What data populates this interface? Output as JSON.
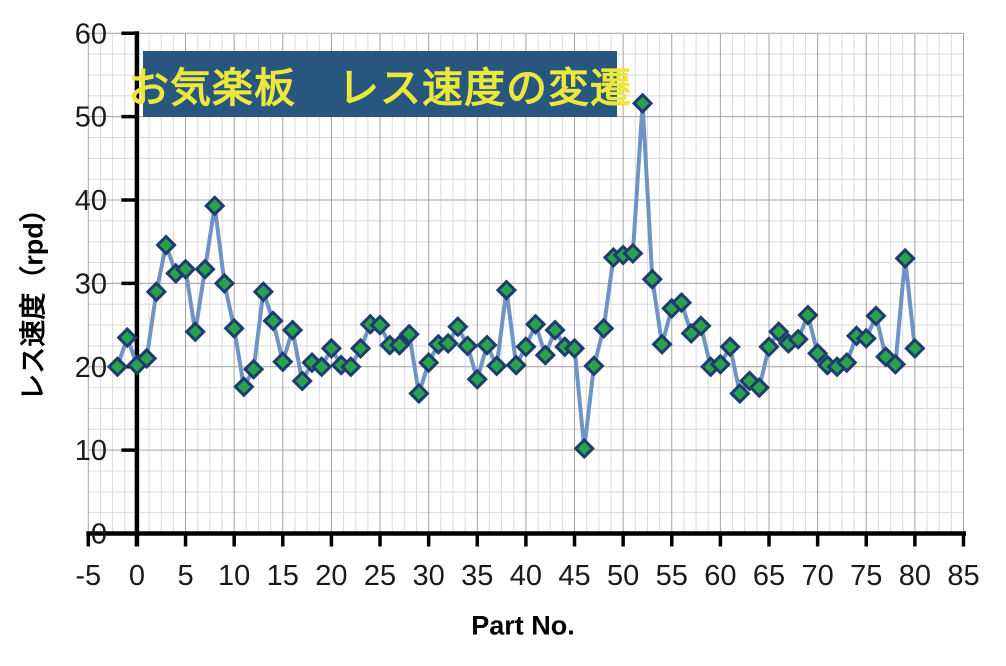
{
  "chart_data": {
    "type": "line",
    "title": "お気楽板　レス速度の変遷",
    "xlabel": "Part No.",
    "ylabel": "レス速度（rpd）",
    "legend_position": "none",
    "grid": true,
    "marker": "diamond",
    "xlim": [
      -5,
      85
    ],
    "ylim": [
      0,
      60
    ],
    "x_tick_labels": [
      "-5",
      "0",
      "5",
      "10",
      "15",
      "20",
      "25",
      "30",
      "35",
      "40",
      "45",
      "50",
      "55",
      "60",
      "65",
      "70",
      "75",
      "80",
      "85"
    ],
    "y_tick_labels": [
      "0",
      "10",
      "20",
      "30",
      "40",
      "50",
      "60"
    ],
    "x_major_step": 5,
    "y_major_step": 10,
    "x_minor_step": 1.25,
    "y_minor_step": 2.5,
    "x": [
      -2,
      -1,
      0,
      1,
      2,
      3,
      4,
      5,
      6,
      7,
      8,
      9,
      10,
      11,
      12,
      13,
      14,
      15,
      16,
      17,
      18,
      19,
      20,
      21,
      22,
      23,
      24,
      25,
      26,
      27,
      28,
      29,
      30,
      31,
      32,
      33,
      34,
      35,
      36,
      37,
      38,
      39,
      40,
      41,
      42,
      43,
      44,
      45,
      46,
      47,
      48,
      49,
      50,
      51,
      52,
      53,
      54,
      55,
      56,
      57,
      58,
      59,
      60,
      61,
      62,
      63,
      64,
      65,
      66,
      67,
      68,
      69,
      70,
      71,
      72,
      73,
      74,
      75,
      76,
      77,
      78,
      79,
      80
    ],
    "y": [
      20,
      23.5,
      20.2,
      21,
      29,
      34.6,
      31.2,
      31.7,
      24.2,
      31.7,
      39.3,
      30,
      24.6,
      17.6,
      19.7,
      29,
      25.5,
      20.6,
      24.4,
      18.3,
      20.5,
      20,
      22.2,
      20.2,
      20,
      22.2,
      25.1,
      25,
      22.6,
      22.6,
      23.9,
      16.8,
      20.5,
      22.7,
      22.8,
      24.8,
      22.5,
      18.5,
      22.6,
      20.1,
      29.2,
      20.2,
      22.4,
      25.1,
      21.4,
      24.4,
      22.4,
      22.2,
      10.2,
      20.1,
      24.6,
      33.1,
      33.4,
      33.6,
      51.6,
      30.5,
      22.7,
      27,
      27.7,
      24,
      24.9,
      20,
      20.3,
      22.4,
      16.8,
      18.3,
      17.5,
      22.4,
      24.2,
      22.8,
      23.3,
      26.2,
      21.6,
      20.2,
      20,
      20.5,
      23.7,
      23.4,
      26.1,
      21.2,
      20.3,
      33,
      22.2
    ]
  },
  "style": {
    "line_color": "#6E93C5",
    "marker_fill": "#2AA14B",
    "marker_border": "#1E3C6F",
    "grid_minor_color": "#DBDBDB",
    "grid_major_color": "#A3A3A3",
    "axis_color": "#000000",
    "tick_label_color": "#1A1A1A",
    "title_bg": "#27577F",
    "title_color": "#EDE73B",
    "background": "#FFFFFF"
  }
}
